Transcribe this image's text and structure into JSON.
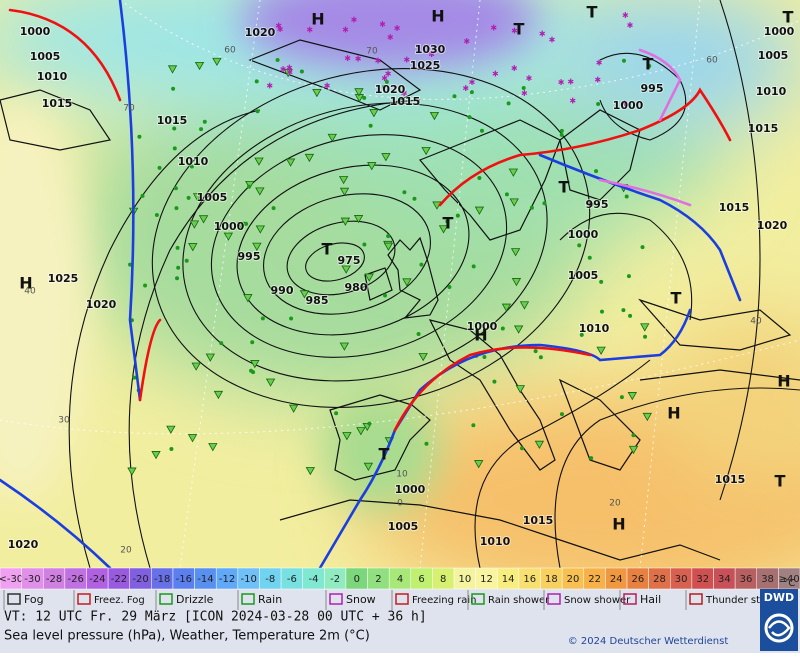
{
  "map": {
    "pressure_labels": [
      "1000",
      "1005",
      "1010",
      "1015",
      "1020",
      "1030",
      "1025",
      "1020",
      "1015",
      "1015",
      "1010",
      "1005",
      "1000",
      "995",
      "990",
      "985",
      "980",
      "975",
      "1025",
      "1020",
      "1000",
      "1010",
      "1005",
      "1000",
      "995",
      "1000",
      "995",
      "1000",
      "1005",
      "1010",
      "1015",
      "1015",
      "1020",
      "1015",
      "1015",
      "1010",
      "1005",
      "1000",
      "1020"
    ],
    "pressure_centers": [
      "H",
      "H",
      "T",
      "T",
      "T",
      "T",
      "T",
      "T",
      "T",
      "H",
      "H",
      "T",
      "H",
      "H",
      "T",
      "T",
      "H"
    ],
    "temperature_labels": [
      "60",
      "70",
      "70",
      "60",
      "40",
      "30",
      "20",
      "20",
      "10",
      "0",
      "40"
    ]
  },
  "temperature_scale": {
    "values": [
      "<-30",
      "-30",
      "-28",
      "-26",
      "-24",
      "-22",
      "-20",
      "-18",
      "-16",
      "-14",
      "-12",
      "-10",
      "-8",
      "-6",
      "-4",
      "-2",
      "0",
      "2",
      "4",
      "6",
      "8",
      "10",
      "12",
      "14",
      "16",
      "18",
      "20",
      "22",
      "24",
      "26",
      "28",
      "30",
      "32",
      "34",
      "36",
      "38",
      "≥40"
    ],
    "colors": [
      "#f0a0f0",
      "#e090e8",
      "#d080e0",
      "#c070e0",
      "#b060e0",
      "#9a5ae0",
      "#8060e0",
      "#6870e8",
      "#5a80f0",
      "#5890f0",
      "#60a8f8",
      "#70c0f8",
      "#70d4f0",
      "#78e0e0",
      "#80e8d0",
      "#90ecc0",
      "#7cd67c",
      "#90e080",
      "#a8e878",
      "#c0f070",
      "#d8f070",
      "#f4f4a0",
      "#f8f4a0",
      "#f8ee80",
      "#f8e070",
      "#f8d060",
      "#f8c050",
      "#f8b048",
      "#f09840",
      "#e88040",
      "#e07048",
      "#d86050",
      "#d05050",
      "#c85058",
      "#b86060",
      "#a87070",
      "#a08080"
    ],
    "unit": "°C"
  },
  "legend": [
    "Fog",
    "Freez. Fog",
    "Drizzle",
    "Rain",
    "Snow",
    "Freezing rain",
    "Rain shower",
    "Snow shower",
    "Hail",
    "Thunder storm"
  ],
  "footer": {
    "valid_time": "VT: 12 UTC Fr.  29 März [ICON 2024-03-28  00 UTC + 36 h]",
    "description": "Sea level pressure (hPa), Weather, Temperature 2m (°C)",
    "copyright": "© 2024 Deutscher Wetterdienst",
    "logo": "DWD"
  }
}
